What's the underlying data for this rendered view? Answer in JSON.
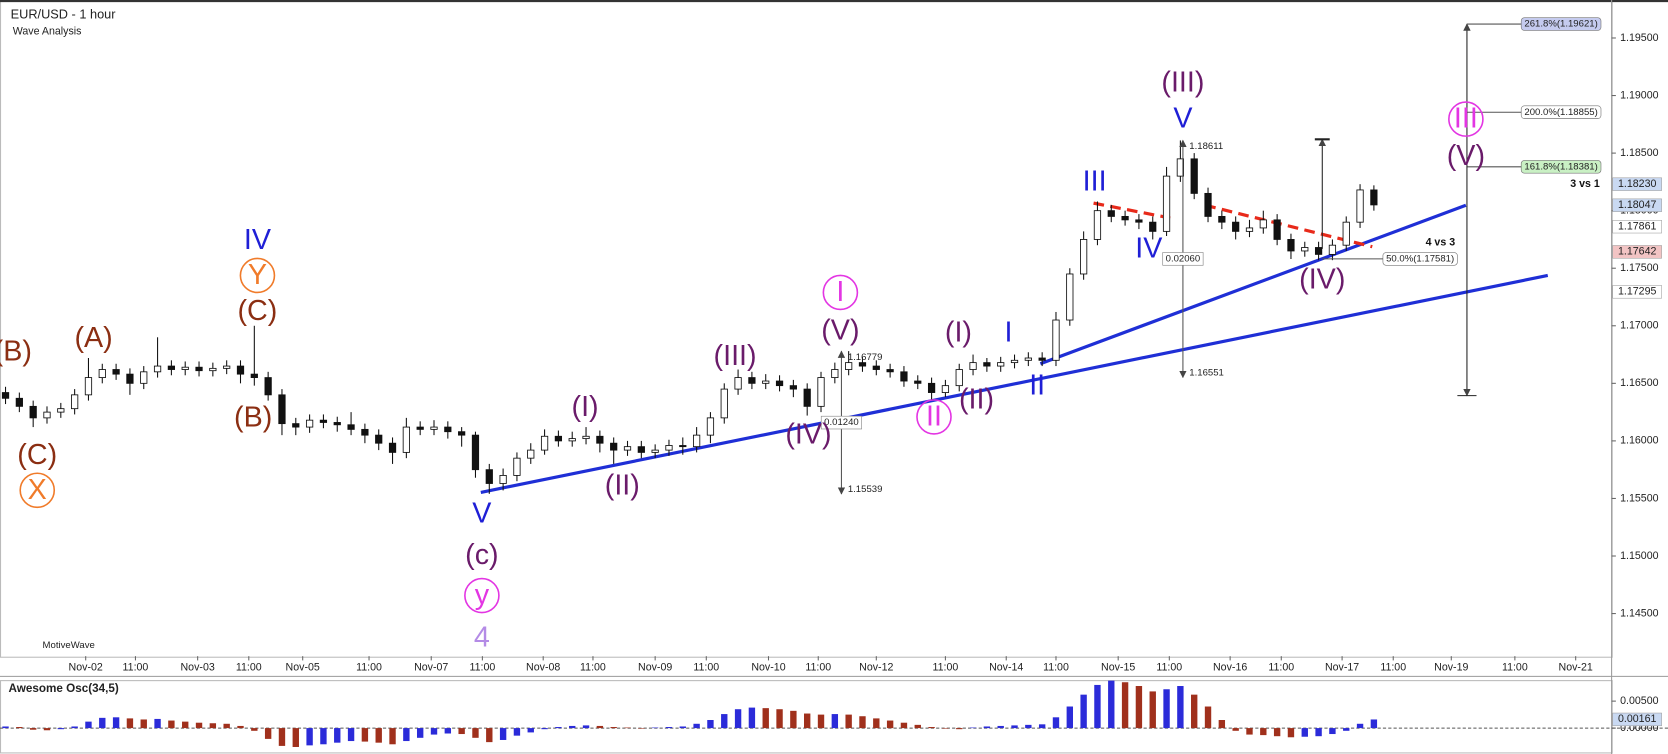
{
  "chart_data": [
    {
      "type": "candlestick",
      "title": "EUR/USD - 1 hour",
      "subtitle": "Wave Analysis",
      "watermark": "MotiveWave",
      "up_color": "#ffffff",
      "down_color": "#111111",
      "wick_color": "#111111",
      "xlim": [
        -0.4,
        116.2
      ],
      "xticks": [
        {
          "value": 5.8,
          "label": "Nov-02"
        },
        {
          "value": 9.4,
          "label": "11:00"
        },
        {
          "value": 13.9,
          "label": "Nov-03"
        },
        {
          "value": 17.6,
          "label": "11:00"
        },
        {
          "value": 21.5,
          "label": "Nov-05"
        },
        {
          "value": 26.3,
          "label": "11:00"
        },
        {
          "value": 30.8,
          "label": "Nov-07"
        },
        {
          "value": 34.5,
          "label": "11:00"
        },
        {
          "value": 38.9,
          "label": "Nov-08"
        },
        {
          "value": 42.5,
          "label": "11:00"
        },
        {
          "value": 47.0,
          "label": "Nov-09"
        },
        {
          "value": 50.7,
          "label": "11:00"
        },
        {
          "value": 55.2,
          "label": "Nov-10"
        },
        {
          "value": 58.8,
          "label": "11:00"
        },
        {
          "value": 63.0,
          "label": "Nov-12"
        },
        {
          "value": 68.0,
          "label": "11:00"
        },
        {
          "value": 72.4,
          "label": "Nov-14"
        },
        {
          "value": 76.0,
          "label": "11:00"
        },
        {
          "value": 80.5,
          "label": "Nov-15"
        },
        {
          "value": 84.2,
          "label": "11:00"
        },
        {
          "value": 88.6,
          "label": "Nov-16"
        },
        {
          "value": 92.3,
          "label": "11:00"
        },
        {
          "value": 96.7,
          "label": "Nov-17"
        },
        {
          "value": 100.4,
          "label": "11:00"
        },
        {
          "value": 104.6,
          "label": "Nov-19"
        },
        {
          "value": 109.2,
          "label": "11:00"
        },
        {
          "value": 113.6,
          "label": "Nov-21"
        }
      ],
      "ylim": [
        1.1413,
        1.1983
      ],
      "yticks": [
        {
          "value": 1.145,
          "label": "1.14500"
        },
        {
          "value": 1.15,
          "label": "1.15000"
        },
        {
          "value": 1.155,
          "label": "1.15500"
        },
        {
          "value": 1.16,
          "label": "1.16000"
        },
        {
          "value": 1.165,
          "label": "1.16500"
        },
        {
          "value": 1.17,
          "label": "1.17000"
        },
        {
          "value": 1.175,
          "label": "1.17500"
        },
        {
          "value": 1.18,
          "label": "1.18000"
        },
        {
          "value": 1.185,
          "label": "1.18500"
        },
        {
          "value": 1.19,
          "label": "1.19000"
        },
        {
          "value": 1.195,
          "label": "1.19500"
        }
      ],
      "open": [
        1.1642,
        1.1637,
        1.163,
        1.162,
        1.1625,
        1.1628,
        1.164,
        1.1655,
        1.1662,
        1.1658,
        1.165,
        1.166,
        1.1665,
        1.1662,
        1.1664,
        1.1661,
        1.1663,
        1.1665,
        1.1658,
        1.1655,
        1.164,
        1.1615,
        1.1612,
        1.1618,
        1.1616,
        1.1614,
        1.161,
        1.1605,
        1.1598,
        1.159,
        1.1612,
        1.161,
        1.1612,
        1.1608,
        1.1605,
        1.1575,
        1.1563,
        1.157,
        1.1585,
        1.1592,
        1.1604,
        1.16,
        1.1602,
        1.1604,
        1.1598,
        1.1592,
        1.1595,
        1.159,
        1.1592,
        1.1596,
        1.1595,
        1.1605,
        1.162,
        1.1645,
        1.1655,
        1.165,
        1.1652,
        1.1648,
        1.1645,
        1.163,
        1.1655,
        1.1662,
        1.1668,
        1.1665,
        1.1662,
        1.166,
        1.1652,
        1.165,
        1.1642,
        1.1648,
        1.1662,
        1.1668,
        1.1665,
        1.1668,
        1.167,
        1.1672,
        1.167,
        1.1705,
        1.1745,
        1.1775,
        1.18,
        1.1795,
        1.1792,
        1.179,
        1.1782,
        1.183,
        1.1845,
        1.1815,
        1.1795,
        1.179,
        1.1782,
        1.1785,
        1.1792,
        1.1775,
        1.1765,
        1.1768,
        1.1762,
        1.177,
        1.179,
        1.1818
      ],
      "high": [
        1.1647,
        1.1642,
        1.1635,
        1.163,
        1.1633,
        1.1645,
        1.1672,
        1.1667,
        1.1667,
        1.1663,
        1.1665,
        1.169,
        1.167,
        1.1669,
        1.1669,
        1.1668,
        1.167,
        1.167,
        1.17,
        1.166,
        1.1645,
        1.162,
        1.1623,
        1.1623,
        1.1621,
        1.1625,
        1.1615,
        1.161,
        1.1603,
        1.162,
        1.1617,
        1.1618,
        1.1617,
        1.1612,
        1.1608,
        1.158,
        1.1576,
        1.159,
        1.1598,
        1.161,
        1.1609,
        1.1608,
        1.1612,
        1.1609,
        1.1603,
        1.16,
        1.16,
        1.1597,
        1.1601,
        1.1603,
        1.1612,
        1.1625,
        1.165,
        1.1662,
        1.166,
        1.1658,
        1.1657,
        1.1653,
        1.165,
        1.166,
        1.1668,
        1.1678,
        1.1673,
        1.167,
        1.1667,
        1.1665,
        1.1657,
        1.1655,
        1.1653,
        1.1667,
        1.1675,
        1.1672,
        1.1673,
        1.1675,
        1.1677,
        1.1677,
        1.1712,
        1.175,
        1.1782,
        1.1808,
        1.1805,
        1.18,
        1.1797,
        1.1795,
        1.1838,
        1.1861,
        1.185,
        1.182,
        1.18,
        1.1795,
        1.1792,
        1.18,
        1.1797,
        1.178,
        1.1773,
        1.1773,
        1.1775,
        1.1795,
        1.1823,
        1.1822
      ],
      "low": [
        1.1632,
        1.1625,
        1.1612,
        1.1615,
        1.162,
        1.1623,
        1.1635,
        1.165,
        1.1653,
        1.164,
        1.1645,
        1.1655,
        1.1657,
        1.1657,
        1.1656,
        1.1656,
        1.1658,
        1.165,
        1.1648,
        1.1635,
        1.1605,
        1.1605,
        1.1607,
        1.1611,
        1.1608,
        1.1605,
        1.1598,
        1.1592,
        1.158,
        1.1585,
        1.1605,
        1.1605,
        1.1602,
        1.1595,
        1.1568,
        1.1554,
        1.1557,
        1.1565,
        1.158,
        1.1588,
        1.1595,
        1.1595,
        1.1597,
        1.159,
        1.158,
        1.1587,
        1.1585,
        1.1585,
        1.1587,
        1.1588,
        1.159,
        1.1598,
        1.1615,
        1.164,
        1.1645,
        1.1645,
        1.1643,
        1.1638,
        1.1622,
        1.1625,
        1.165,
        1.1657,
        1.166,
        1.1657,
        1.1655,
        1.1647,
        1.1645,
        1.1636,
        1.1638,
        1.1643,
        1.1657,
        1.166,
        1.166,
        1.1663,
        1.1665,
        1.1665,
        1.1665,
        1.17,
        1.174,
        1.177,
        1.179,
        1.1787,
        1.1784,
        1.1775,
        1.1778,
        1.1825,
        1.181,
        1.179,
        1.1784,
        1.1775,
        1.1777,
        1.178,
        1.177,
        1.1758,
        1.176,
        1.1757,
        1.1757,
        1.1765,
        1.1785,
        1.18
      ],
      "close": [
        1.1637,
        1.163,
        1.162,
        1.1625,
        1.1628,
        1.164,
        1.1655,
        1.1662,
        1.1658,
        1.165,
        1.166,
        1.1665,
        1.1662,
        1.1664,
        1.1661,
        1.1663,
        1.1665,
        1.1658,
        1.1655,
        1.164,
        1.1615,
        1.1612,
        1.1618,
        1.1616,
        1.1614,
        1.161,
        1.1605,
        1.1598,
        1.159,
        1.1612,
        1.161,
        1.1612,
        1.1608,
        1.1605,
        1.1575,
        1.1563,
        1.157,
        1.1585,
        1.1592,
        1.1604,
        1.16,
        1.1602,
        1.1604,
        1.1598,
        1.1592,
        1.1595,
        1.159,
        1.1592,
        1.1596,
        1.1595,
        1.1605,
        1.162,
        1.1645,
        1.1655,
        1.165,
        1.1652,
        1.1648,
        1.1645,
        1.163,
        1.1655,
        1.1662,
        1.1668,
        1.1665,
        1.1662,
        1.166,
        1.1652,
        1.165,
        1.1642,
        1.1648,
        1.1662,
        1.1668,
        1.1665,
        1.1668,
        1.167,
        1.1672,
        1.167,
        1.1705,
        1.1745,
        1.1775,
        1.18,
        1.1795,
        1.1792,
        1.179,
        1.1782,
        1.183,
        1.1845,
        1.1815,
        1.1795,
        1.179,
        1.1782,
        1.1785,
        1.1792,
        1.1775,
        1.1765,
        1.1768,
        1.1762,
        1.177,
        1.179,
        1.1818,
        1.1805
      ],
      "price_markers": [
        {
          "value": 1.1823,
          "label": "1.18230",
          "color": "#c9d9f2"
        },
        {
          "value": 1.18047,
          "label": "1.18047",
          "color": "#c9d9f2"
        },
        {
          "value": 1.17861,
          "label": "1.17861",
          "color": "#ffffff"
        },
        {
          "value": 1.17642,
          "label": "1.17642",
          "color": "#f2c4c4"
        },
        {
          "value": 1.17295,
          "label": "1.17295",
          "color": "#ffffff"
        }
      ],
      "fib_levels": [
        {
          "value": 1.19621,
          "label": "261.8%(1.19621)",
          "color": "#c5cbef"
        },
        {
          "value": 1.18855,
          "label": "200.0%(1.18855)",
          "color": "#ffffff"
        },
        {
          "value": 1.18381,
          "label": "161.8%(1.18381)",
          "color": "#c9f0c4"
        },
        {
          "value": 1.17581,
          "label": "50.0%(1.17581)",
          "color": "#ffffff"
        }
      ],
      "measures": [
        {
          "high": {
            "value": 1.18611,
            "label": "1.18611"
          },
          "low": {
            "value": 1.16551,
            "label": "1.16551"
          },
          "diff": {
            "value": 0.0206,
            "label": "0.02060"
          }
        },
        {
          "high": {
            "value": 1.16779,
            "label": "1.16779"
          },
          "low": {
            "value": 1.15539,
            "label": "1.15539"
          },
          "diff": {
            "value": 0.0124,
            "label": "0.01240"
          }
        }
      ],
      "annotations": [
        {
          "text": "(B)",
          "color": "#8b2e12"
        },
        {
          "text": "(A)",
          "color": "#8b2e12"
        },
        {
          "text": "(C)",
          "color": "#8b2e12"
        },
        {
          "text": "X",
          "color": "#f07b2a",
          "circled": true
        },
        {
          "text": "IV",
          "color": "#1f1fd6"
        },
        {
          "text": "Y",
          "color": "#f07b2a",
          "circled": true
        },
        {
          "text": "(C)",
          "color": "#8b2e12"
        },
        {
          "text": "(B)",
          "color": "#8b2e12"
        },
        {
          "text": "V",
          "color": "#1f1fd6"
        },
        {
          "text": "(c)",
          "color": "#6a1b6a"
        },
        {
          "text": "y",
          "color": "#e335e3",
          "circled": true
        },
        {
          "text": "4",
          "color": "#b48be6"
        },
        {
          "text": "(I)",
          "color": "#6a1b6a"
        },
        {
          "text": "(II)",
          "color": "#6a1b6a"
        },
        {
          "text": "(III)",
          "color": "#6a1b6a"
        },
        {
          "text": "(IV)",
          "color": "#6a1b6a"
        },
        {
          "text": "I",
          "color": "#e335e3",
          "circled": true
        },
        {
          "text": "(V)",
          "color": "#6a1b6a"
        },
        {
          "text": "(I)",
          "color": "#6a1b6a"
        },
        {
          "text": "(II)",
          "color": "#6a1b6a"
        },
        {
          "text": "II",
          "color": "#e335e3",
          "circled": true
        },
        {
          "text": "I",
          "color": "#1f1fd6"
        },
        {
          "text": "II",
          "color": "#1f1fd6"
        },
        {
          "text": "III",
          "color": "#1f1fd6"
        },
        {
          "text": "IV",
          "color": "#1f1fd6"
        },
        {
          "text": "(III)",
          "color": "#6a1b6a"
        },
        {
          "text": "V",
          "color": "#1f1fd6"
        },
        {
          "text": "(IV)",
          "color": "#6a1b6a"
        },
        {
          "text": "III",
          "color": "#e335e3",
          "circled": true
        },
        {
          "text": "(V)",
          "color": "#6a1b6a"
        },
        {
          "text": "3 vs 1",
          "color": "#111111"
        },
        {
          "text": "4 vs 3",
          "color": "#111111"
        }
      ]
    },
    {
      "type": "bar",
      "title": "Awesome Osc(34,5)",
      "up_color": "#2b2bd9",
      "down_color": "#a0301c",
      "xlim": [
        -0.4,
        116.2
      ],
      "ylim": [
        -0.0048,
        0.0088
      ],
      "yticks": [
        {
          "value": 0.005,
          "label": "0.00500"
        },
        {
          "value": 0,
          "label": "0.00000"
        }
      ],
      "last_value": {
        "value": 0.00161,
        "label": "0.00161"
      },
      "values": [
        0.0003,
        0.0002,
        -0.0003,
        -0.0004,
        -0.0002,
        0.0003,
        0.0012,
        0.0019,
        0.002,
        0.0018,
        0.0016,
        0.0017,
        0.0014,
        0.0012,
        0.001,
        0.0009,
        0.0008,
        0.0004,
        -0.0005,
        -0.002,
        -0.0033,
        -0.0035,
        -0.0032,
        -0.003,
        -0.0027,
        -0.0024,
        -0.0025,
        -0.0027,
        -0.003,
        -0.0024,
        -0.0018,
        -0.0012,
        -0.001,
        -0.0011,
        -0.0018,
        -0.0026,
        -0.0022,
        -0.0014,
        -0.0008,
        -0.0002,
        0.0002,
        0.0004,
        0.0005,
        0.0004,
        0.0002,
        0.0001,
        0.0,
        0.0001,
        0.0002,
        0.0003,
        0.0008,
        0.0015,
        0.0026,
        0.0035,
        0.0038,
        0.0037,
        0.0035,
        0.0032,
        0.0027,
        0.0025,
        0.0026,
        0.0025,
        0.0022,
        0.0018,
        0.0014,
        0.001,
        0.0006,
        0.0002,
        0.0,
        -0.0002,
        0.0001,
        0.0003,
        0.0004,
        0.0005,
        0.0006,
        0.0007,
        0.002,
        0.004,
        0.0062,
        0.008,
        0.0088,
        0.0085,
        0.0078,
        0.0068,
        0.0072,
        0.0078,
        0.0062,
        0.004,
        0.0015,
        -0.0005,
        -0.0012,
        -0.0013,
        -0.0015,
        -0.0017,
        -0.0016,
        -0.0015,
        -0.0011,
        -0.0005,
        0.0008,
        0.0016
      ]
    }
  ]
}
